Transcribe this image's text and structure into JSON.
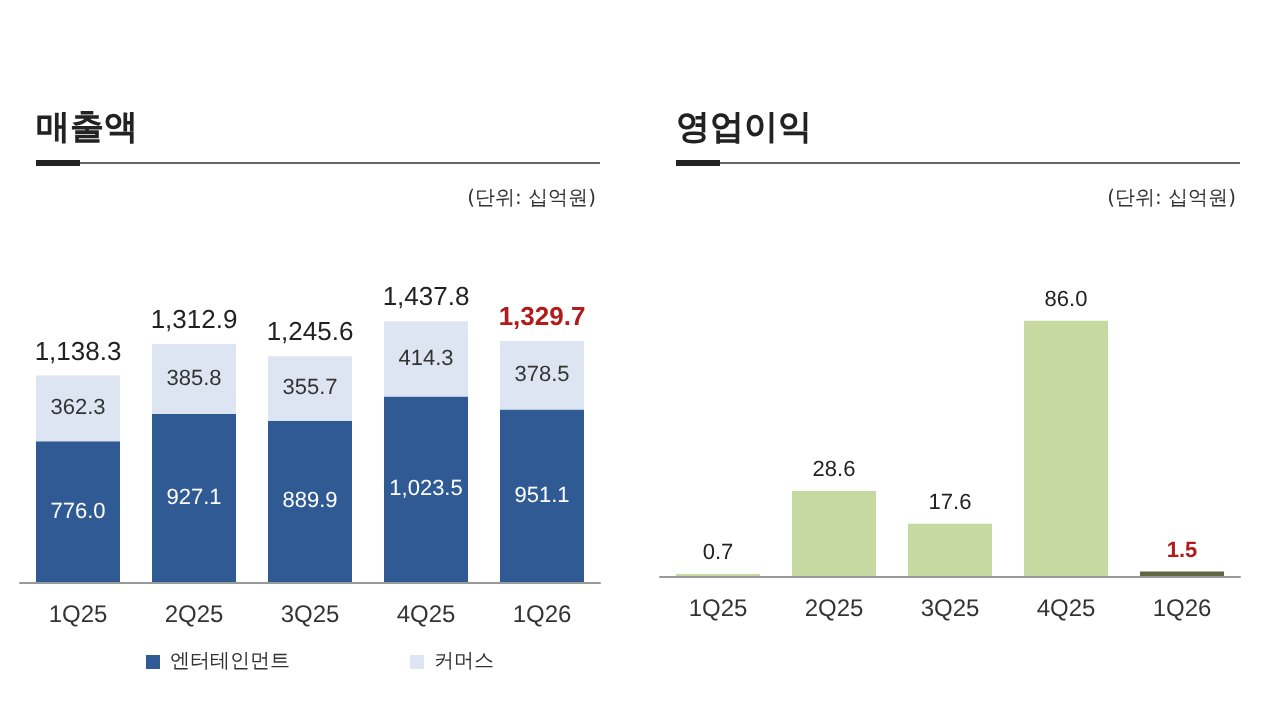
{
  "chart_data": [
    {
      "type": "bar",
      "title": "매출액",
      "annotations": [
        "(단위: 십억원)"
      ],
      "categories": [
        "1Q25",
        "2Q25",
        "3Q25",
        "4Q25",
        "1Q26"
      ],
      "stacked": true,
      "data_labels": true,
      "legend": "bottom",
      "series": [
        {
          "name": "엔터테인먼트",
          "color": "#2f5a94",
          "values": [
            776.0,
            927.1,
            889.9,
            1023.5,
            951.1
          ],
          "value_labels": [
            "776.0",
            "927.1",
            "889.9",
            "1,023.5",
            "951.1"
          ]
        },
        {
          "name": "커머스",
          "color": "#dce5f1",
          "values": [
            362.3,
            385.8,
            355.7,
            414.3,
            378.5
          ],
          "value_labels": [
            "362.3",
            "385.8",
            "355.7",
            "414.3",
            "378.5"
          ]
        }
      ],
      "totals": [
        "1,138.3",
        "1,312.9",
        "1,245.6",
        "1,437.8",
        "1,329.7"
      ]
    },
    {
      "type": "bar",
      "title": "영업이익",
      "annotations": [
        "(단위: 십억원)"
      ],
      "categories": [
        "1Q25",
        "2Q25",
        "3Q25",
        "4Q25",
        "1Q26"
      ],
      "data_labels": true,
      "legend": false,
      "values": [
        0.7,
        28.6,
        17.6,
        86.0,
        1.5
      ],
      "value_labels": [
        "0.7",
        "28.6",
        "17.6",
        "86.0",
        "1.5"
      ],
      "colors": [
        "#c6d9a0",
        "#c6d9a0",
        "#c6d9a0",
        "#c6d9a0",
        "#5f6640"
      ]
    }
  ]
}
